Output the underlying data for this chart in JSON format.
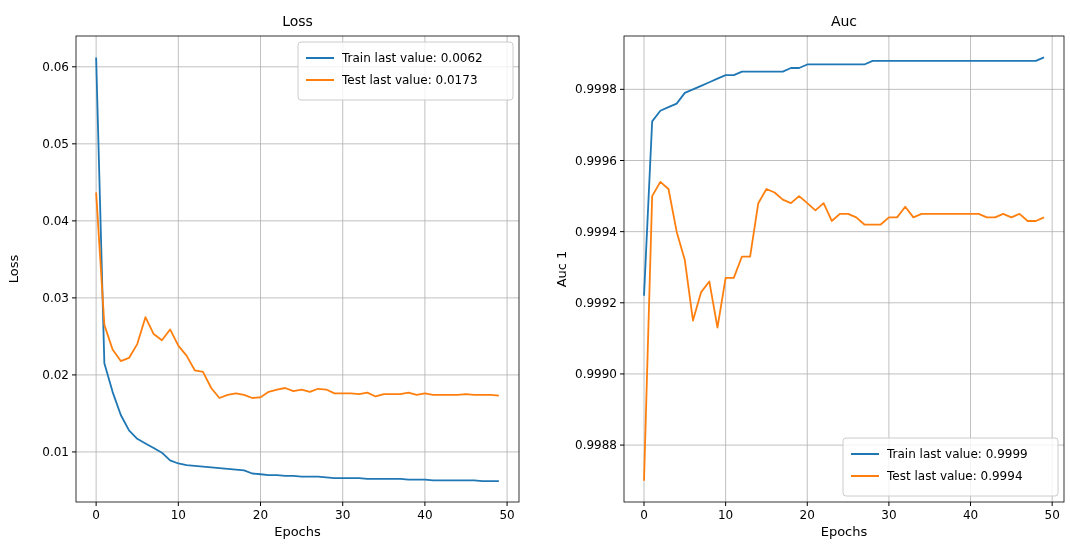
{
  "chart_data": [
    {
      "type": "line",
      "title": "Loss",
      "xlabel": "Epochs",
      "ylabel": "Loss",
      "x": [
        0,
        1,
        2,
        3,
        4,
        5,
        6,
        7,
        8,
        9,
        10,
        11,
        12,
        13,
        14,
        15,
        16,
        17,
        18,
        19,
        20,
        21,
        22,
        23,
        24,
        25,
        26,
        27,
        28,
        29,
        30,
        31,
        32,
        33,
        34,
        35,
        36,
        37,
        38,
        39,
        40,
        41,
        42,
        43,
        44,
        45,
        46,
        47,
        48,
        49
      ],
      "xlim": [
        -2.45,
        51.45
      ],
      "xticks": [
        0,
        10,
        20,
        30,
        40,
        50
      ],
      "ylim": [
        0.0035,
        0.064
      ],
      "yticks": [
        {
          "value": 0.01,
          "label": "0.01"
        },
        {
          "value": 0.02,
          "label": "0.02"
        },
        {
          "value": 0.03,
          "label": "0.03"
        },
        {
          "value": 0.04,
          "label": "0.04"
        },
        {
          "value": 0.05,
          "label": "0.05"
        },
        {
          "value": 0.06,
          "label": "0.06"
        }
      ],
      "grid": true,
      "legend": "top right",
      "series": [
        {
          "name": "Train last value: 0.0062",
          "color": "#1f77b4",
          "values": [
            0.0612,
            0.0215,
            0.0178,
            0.0148,
            0.0128,
            0.0117,
            0.0111,
            0.0105,
            0.0099,
            0.0089,
            0.0085,
            0.0083,
            0.0082,
            0.0081,
            0.008,
            0.0079,
            0.0078,
            0.0077,
            0.0076,
            0.0072,
            0.0071,
            0.007,
            0.007,
            0.0069,
            0.0069,
            0.0068,
            0.0068,
            0.0068,
            0.0067,
            0.0066,
            0.0066,
            0.0066,
            0.0066,
            0.0065,
            0.0065,
            0.0065,
            0.0065,
            0.0065,
            0.0064,
            0.0064,
            0.0064,
            0.0063,
            0.0063,
            0.0063,
            0.0063,
            0.0063,
            0.0063,
            0.0062,
            0.0062,
            0.0062
          ]
        },
        {
          "name": "Test last value: 0.0173",
          "color": "#ff7f0e",
          "values": [
            0.0437,
            0.0265,
            0.0233,
            0.0218,
            0.0222,
            0.024,
            0.0275,
            0.0253,
            0.0245,
            0.0259,
            0.0238,
            0.0225,
            0.0206,
            0.0204,
            0.0183,
            0.017,
            0.0174,
            0.0176,
            0.0174,
            0.017,
            0.0171,
            0.0178,
            0.0181,
            0.0183,
            0.0179,
            0.0181,
            0.0178,
            0.0182,
            0.0181,
            0.0176,
            0.0176,
            0.0176,
            0.0175,
            0.0177,
            0.0172,
            0.0175,
            0.0175,
            0.0175,
            0.0177,
            0.0174,
            0.0176,
            0.0174,
            0.0174,
            0.0174,
            0.0174,
            0.0175,
            0.0174,
            0.0174,
            0.0174,
            0.0173
          ]
        }
      ]
    },
    {
      "type": "line",
      "title": "Auc",
      "xlabel": "Epochs",
      "ylabel": "Auc 1",
      "x": [
        0,
        1,
        2,
        3,
        4,
        5,
        6,
        7,
        8,
        9,
        10,
        11,
        12,
        13,
        14,
        15,
        16,
        17,
        18,
        19,
        20,
        21,
        22,
        23,
        24,
        25,
        26,
        27,
        28,
        29,
        30,
        31,
        32,
        33,
        34,
        35,
        36,
        37,
        38,
        39,
        40,
        41,
        42,
        43,
        44,
        45,
        46,
        47,
        48,
        49
      ],
      "xlim": [
        -2.45,
        51.45
      ],
      "xticks": [
        0,
        10,
        20,
        30,
        40,
        50
      ],
      "ylim": [
        0.99864,
        0.99995
      ],
      "yticks": [
        {
          "value": 0.9988,
          "label": "0.9988"
        },
        {
          "value": 0.999,
          "label": "0.9990"
        },
        {
          "value": 0.9992,
          "label": "0.9992"
        },
        {
          "value": 0.9994,
          "label": "0.9994"
        },
        {
          "value": 0.9996,
          "label": "0.9996"
        },
        {
          "value": 0.9998,
          "label": "0.9998"
        }
      ],
      "grid": true,
      "legend": "bottom right",
      "series": [
        {
          "name": "Train last value: 0.9999",
          "color": "#1f77b4",
          "values": [
            0.99922,
            0.99971,
            0.99974,
            0.99975,
            0.99976,
            0.99979,
            0.9998,
            0.99981,
            0.99982,
            0.99983,
            0.99984,
            0.99984,
            0.99985,
            0.99985,
            0.99985,
            0.99985,
            0.99985,
            0.99985,
            0.99986,
            0.99986,
            0.99987,
            0.99987,
            0.99987,
            0.99987,
            0.99987,
            0.99987,
            0.99987,
            0.99987,
            0.99988,
            0.99988,
            0.99988,
            0.99988,
            0.99988,
            0.99988,
            0.99988,
            0.99988,
            0.99988,
            0.99988,
            0.99988,
            0.99988,
            0.99988,
            0.99988,
            0.99988,
            0.99988,
            0.99988,
            0.99988,
            0.99988,
            0.99988,
            0.99988,
            0.99989
          ]
        },
        {
          "name": "Test last value: 0.9994",
          "color": "#ff7f0e",
          "values": [
            0.9987,
            0.9995,
            0.99954,
            0.99952,
            0.9994,
            0.99932,
            0.99915,
            0.99923,
            0.99926,
            0.99913,
            0.99927,
            0.99927,
            0.99933,
            0.99933,
            0.99948,
            0.99952,
            0.99951,
            0.99949,
            0.99948,
            0.9995,
            0.99948,
            0.99946,
            0.99948,
            0.99943,
            0.99945,
            0.99945,
            0.99944,
            0.99942,
            0.99942,
            0.99942,
            0.99944,
            0.99944,
            0.99947,
            0.99944,
            0.99945,
            0.99945,
            0.99945,
            0.99945,
            0.99945,
            0.99945,
            0.99945,
            0.99945,
            0.99944,
            0.99944,
            0.99945,
            0.99944,
            0.99945,
            0.99943,
            0.99943,
            0.99944
          ]
        }
      ]
    }
  ]
}
